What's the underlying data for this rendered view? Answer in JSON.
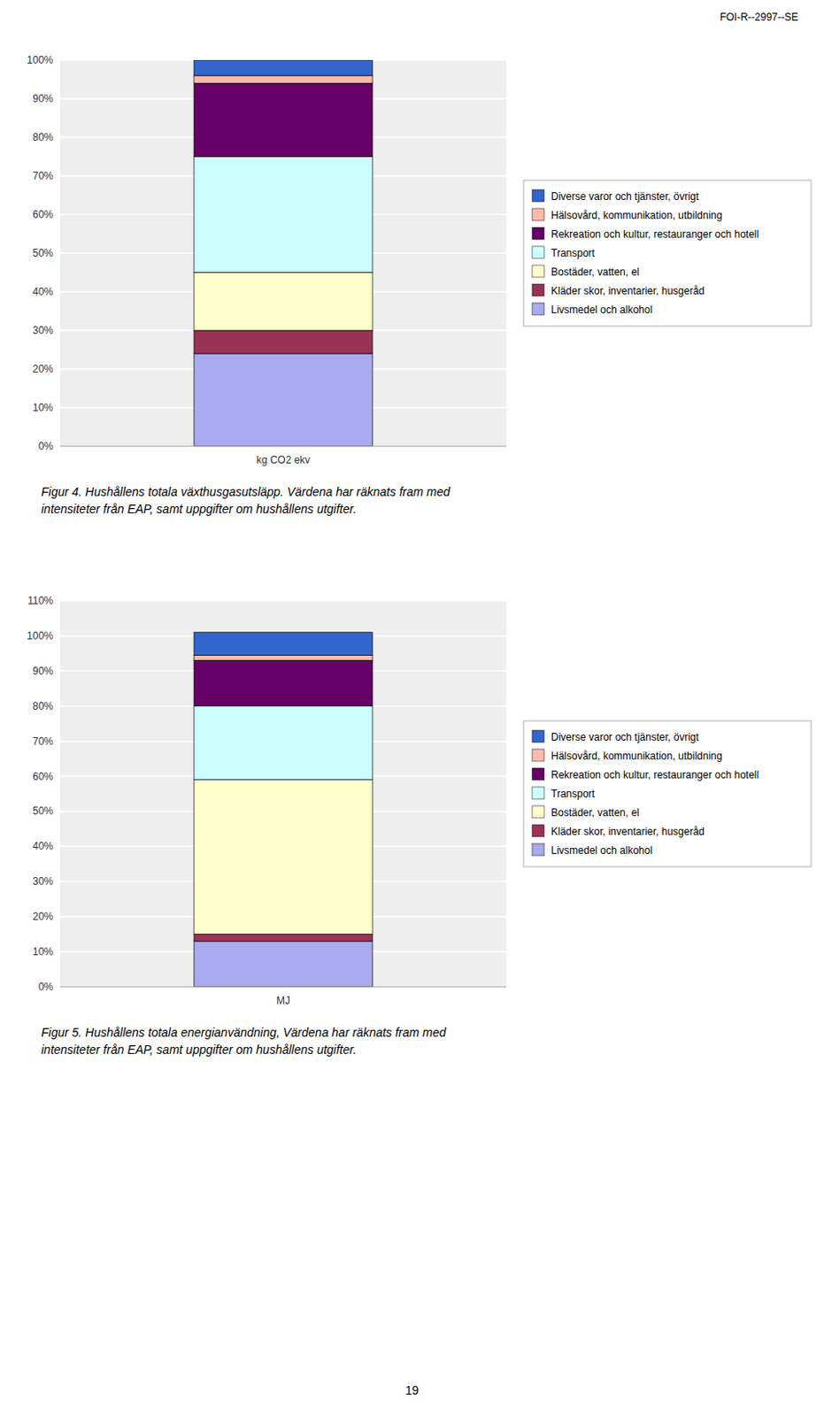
{
  "header": "FOI-R--2997--SE",
  "page_number": "19",
  "chart_data": [
    {
      "type": "bar",
      "stacked": true,
      "grid": true,
      "legend": "right",
      "caption": "Figur 4. Hushållens totala växthusgasutsläpp. Värdena har räknats fram med\nintensiteter från EAP, samt uppgifter om hushållens utgifter.",
      "categories": [
        "kg CO2 ekv"
      ],
      "series": [
        {
          "name": "Livsmedel och alkohol",
          "color": "#aaaaee",
          "values": [
            0.24
          ]
        },
        {
          "name": "Kläder skor, inventarier, husgeråd",
          "color": "#993355",
          "values": [
            0.06
          ]
        },
        {
          "name": "Bostäder, vatten, el",
          "color": "#ffffcc",
          "values": [
            0.15
          ]
        },
        {
          "name": "Transport",
          "color": "#ccffff",
          "values": [
            0.3
          ]
        },
        {
          "name": "Rekreation och kultur, restauranger och hotell",
          "color": "#660066",
          "values": [
            0.19
          ]
        },
        {
          "name": "Hälsovård, kommunikation, utbildning",
          "color": "#ffbbaa",
          "values": [
            0.02
          ]
        },
        {
          "name": "Diverse varor och tjänster, övrigt",
          "color": "#3366cc",
          "values": [
            0.04
          ]
        }
      ],
      "ylim": [
        0,
        1.0
      ],
      "yticks": [
        {
          "value": 0.0,
          "label": "0%"
        },
        {
          "value": 0.1,
          "label": "10%"
        },
        {
          "value": 0.2,
          "label": "20%"
        },
        {
          "value": 0.3,
          "label": "30%"
        },
        {
          "value": 0.4,
          "label": "40%"
        },
        {
          "value": 0.5,
          "label": "50%"
        },
        {
          "value": 0.6,
          "label": "60%"
        },
        {
          "value": 0.7,
          "label": "70%"
        },
        {
          "value": 0.8,
          "label": "80%"
        },
        {
          "value": 0.9,
          "label": "90%"
        },
        {
          "value": 1.0,
          "label": "100%"
        }
      ]
    },
    {
      "type": "bar",
      "stacked": true,
      "grid": true,
      "legend": "right",
      "caption": "Figur 5. Hushållens totala energianvändning, Värdena har räknats fram med\nintensiteter från EAP, samt uppgifter om hushållens utgifter.",
      "categories": [
        "MJ"
      ],
      "series": [
        {
          "name": "Livsmedel och alkohol",
          "color": "#aaaaee",
          "values": [
            0.13
          ]
        },
        {
          "name": "Kläder skor, inventarier, husgeråd",
          "color": "#993355",
          "values": [
            0.02
          ]
        },
        {
          "name": "Bostäder, vatten, el",
          "color": "#ffffcc",
          "values": [
            0.44
          ]
        },
        {
          "name": "Transport",
          "color": "#ccffff",
          "values": [
            0.21
          ]
        },
        {
          "name": "Rekreation och kultur, restauranger och hotell",
          "color": "#660066",
          "values": [
            0.13
          ]
        },
        {
          "name": "Hälsovård, kommunikation, utbildning",
          "color": "#ffbbaa",
          "values": [
            0.015
          ]
        },
        {
          "name": "Diverse varor och tjänster, övrigt",
          "color": "#3366cc",
          "values": [
            0.065
          ]
        }
      ],
      "ylim": [
        0,
        1.1
      ],
      "yticks": [
        {
          "value": 0.0,
          "label": "0%"
        },
        {
          "value": 0.1,
          "label": "10%"
        },
        {
          "value": 0.2,
          "label": "20%"
        },
        {
          "value": 0.3,
          "label": "30%"
        },
        {
          "value": 0.4,
          "label": "40%"
        },
        {
          "value": 0.5,
          "label": "50%"
        },
        {
          "value": 0.6,
          "label": "60%"
        },
        {
          "value": 0.7,
          "label": "70%"
        },
        {
          "value": 0.8,
          "label": "80%"
        },
        {
          "value": 0.9,
          "label": "90%"
        },
        {
          "value": 1.0,
          "label": "100%"
        },
        {
          "value": 1.1,
          "label": "110%"
        }
      ]
    }
  ]
}
